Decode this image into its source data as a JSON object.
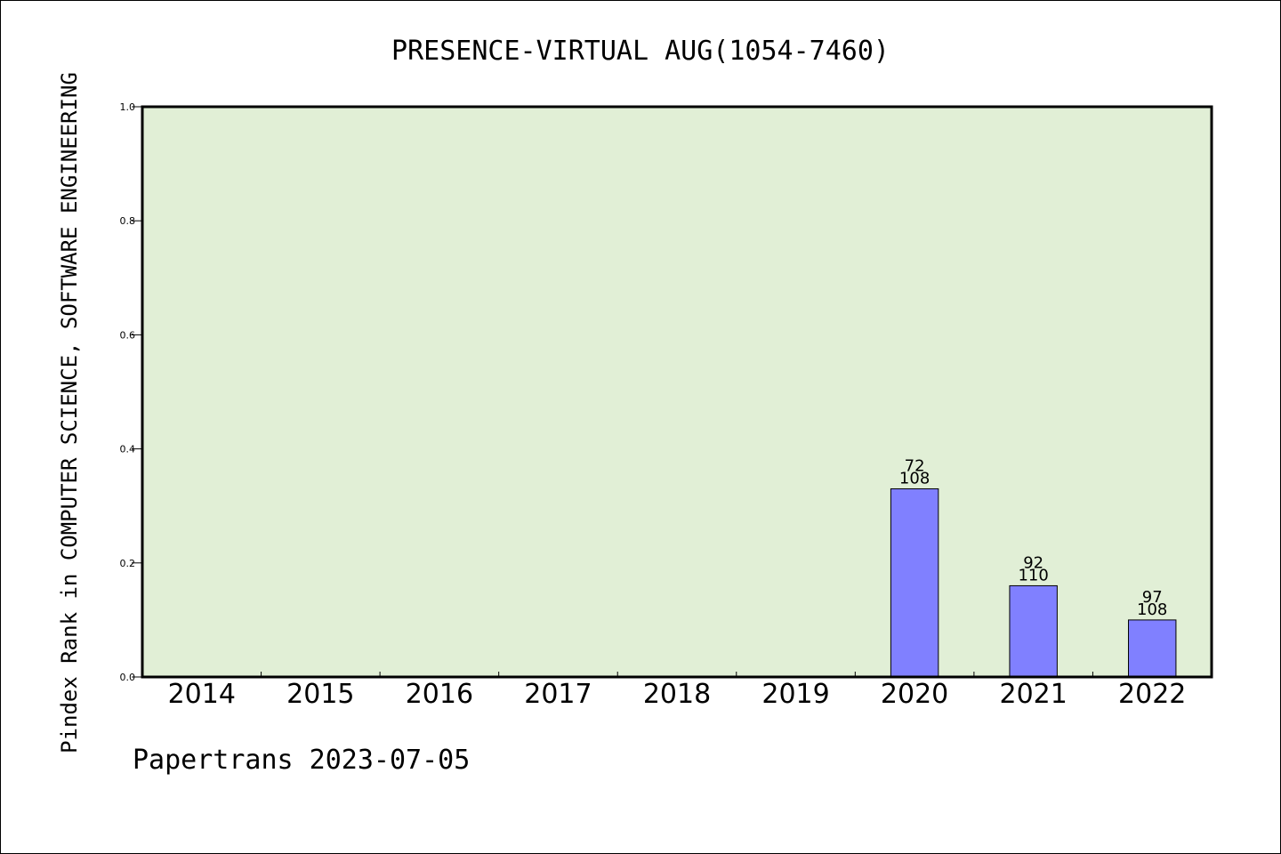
{
  "chart_data": {
    "type": "bar",
    "title": "PRESENCE-VIRTUAL AUG(1054-7460)",
    "ylabel": "Pindex Rank in COMPUTER SCIENCE, SOFTWARE ENGINEERING",
    "xlabel": "",
    "categories": [
      "2014",
      "2015",
      "2016",
      "2017",
      "2018",
      "2019",
      "2020",
      "2021",
      "2022"
    ],
    "values": [
      null,
      null,
      null,
      null,
      null,
      null,
      0.33,
      0.16,
      0.1
    ],
    "bar_labels": [
      null,
      null,
      null,
      null,
      null,
      null,
      {
        "rank": "72",
        "total": "108"
      },
      {
        "rank": "92",
        "total": "110"
      },
      {
        "rank": "97",
        "total": "108"
      }
    ],
    "ylim": [
      0,
      1
    ],
    "yticks": [
      "0.0",
      "0.2",
      "0.4",
      "0.6",
      "0.8",
      "1.0"
    ],
    "grid": false,
    "colors": {
      "plot_background": "#e1efd6",
      "bar_fill": "#8080ff",
      "bar_stroke": "#000000"
    }
  },
  "footer": {
    "text": "Papertrans 2023-07-05"
  }
}
